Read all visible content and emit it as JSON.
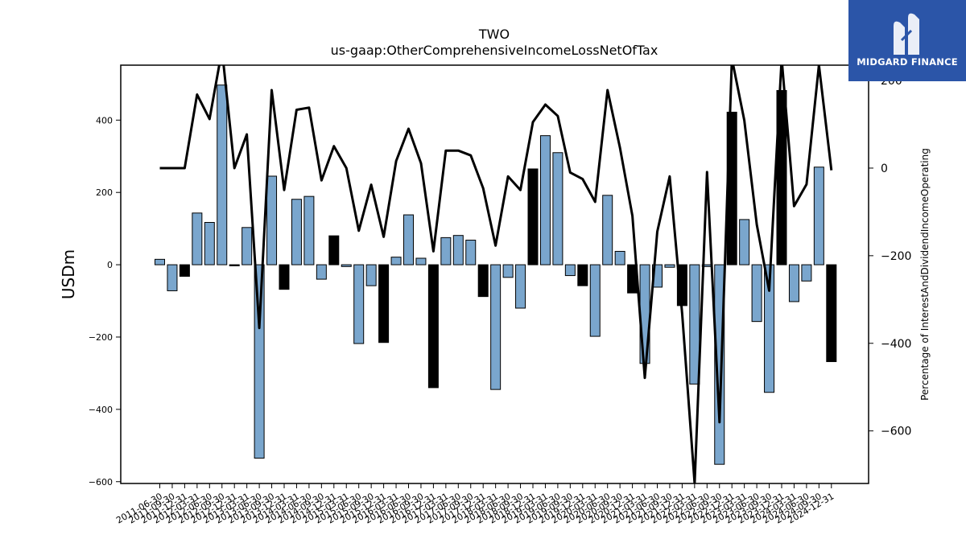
{
  "logo": {
    "text": "MIDGARD FINANCE"
  },
  "chart_data": {
    "type": "bar",
    "title": "TWO",
    "subtitle": "us-gaap:OtherComprehensiveIncomeLossNetOfTax",
    "ylabel": "USDm",
    "y2label": "Percentage of InterestAndDividendIncomeOperating",
    "ylim": [
      -605,
      552
    ],
    "y2lim": [
      -720,
      235
    ],
    "yticks": [
      -600,
      -400,
      -200,
      0,
      200,
      400
    ],
    "y2ticks": [
      -600,
      -400,
      -200,
      0,
      200
    ],
    "x_tick_labels": [
      "2011-06-30",
      "2011-09-30",
      "2011-12-31",
      "2012-03-31",
      "2012-06-30",
      "2012-09-30",
      "2012-12-31",
      "2013-03-31",
      "2013-06-30",
      "2013-09-30",
      "2013-12-31",
      "2014-03-31",
      "2014-06-30",
      "2014-09-30",
      "2014-12-31",
      "2015-03-31",
      "2015-06-30",
      "2015-09-30",
      "2015-12-31",
      "2016-03-31",
      "2016-06-30",
      "2016-09-30",
      "2016-12-31",
      "2017-03-31",
      "2017-06-30",
      "2017-09-30",
      "2017-12-31",
      "2018-03-31",
      "2018-06-30",
      "2018-09-30",
      "2018-12-31",
      "2019-03-31",
      "2019-06-30",
      "2019-09-30",
      "2019-12-31",
      "2020-03-31",
      "2020-06-30",
      "2020-09-30",
      "2020-12-31",
      "2021-03-31",
      "2021-06-30",
      "2021-09-30",
      "2021-12-31",
      "2022-03-31",
      "2022-06-30",
      "2022-09-30",
      "2022-12-31",
      "2023-03-31",
      "2023-06-30",
      "2023-09-30",
      "2023-12-31",
      "2024-03-31",
      "2024-06-30",
      "2024-09-30",
      "2024-12-31"
    ],
    "series": [
      {
        "kind": "bar",
        "values": [
          15,
          -72,
          -32,
          143,
          117,
          497,
          -3,
          103,
          -535,
          245,
          -68,
          181,
          189,
          -40,
          80,
          -5,
          -218,
          -58,
          -215,
          21,
          138,
          18,
          -340,
          75,
          81,
          68,
          -88,
          -345,
          -35,
          -120,
          265,
          357,
          310,
          -30,
          -58,
          -198,
          192,
          37,
          -78,
          -273,
          -62,
          -7,
          -113,
          -330,
          -5,
          -552,
          422,
          125,
          -157,
          -353,
          482,
          -102,
          -45,
          270,
          -268
        ],
        "colors": [
          "#7aa6cd",
          "#7aa6cd",
          "#000000",
          "#7aa6cd",
          "#7aa6cd",
          "#7aa6cd",
          "#000000",
          "#7aa6cd",
          "#7aa6cd",
          "#7aa6cd",
          "#000000",
          "#7aa6cd",
          "#7aa6cd",
          "#7aa6cd",
          "#000000",
          "#7aa6cd",
          "#7aa6cd",
          "#7aa6cd",
          "#000000",
          "#7aa6cd",
          "#7aa6cd",
          "#7aa6cd",
          "#000000",
          "#7aa6cd",
          "#7aa6cd",
          "#7aa6cd",
          "#000000",
          "#7aa6cd",
          "#7aa6cd",
          "#7aa6cd",
          "#000000",
          "#7aa6cd",
          "#7aa6cd",
          "#7aa6cd",
          "#000000",
          "#7aa6cd",
          "#7aa6cd",
          "#7aa6cd",
          "#000000",
          "#7aa6cd",
          "#7aa6cd",
          "#7aa6cd",
          "#000000",
          "#7aa6cd",
          "#7aa6cd",
          "#7aa6cd",
          "#000000",
          "#7aa6cd",
          "#7aa6cd",
          "#7aa6cd",
          "#000000",
          "#7aa6cd",
          "#7aa6cd",
          "#7aa6cd",
          "#000000"
        ]
      },
      {
        "kind": "line",
        "axis": "right",
        "color": "#000000",
        "values": [
          0,
          0,
          0,
          168,
          112,
          270,
          0,
          77,
          -365,
          178,
          -50,
          133,
          138,
          -28,
          50,
          0,
          -143,
          -38,
          -157,
          16,
          90,
          11,
          -190,
          40,
          40,
          29,
          -46,
          -177,
          -19,
          -50,
          105,
          145,
          119,
          -10,
          -25,
          -77,
          178,
          47,
          -109,
          -479,
          -145,
          -19,
          -332,
          -720,
          -9,
          -580,
          250,
          109,
          -129,
          -280,
          250,
          -87,
          -37,
          235,
          -5
        ]
      }
    ],
    "grid": false
  }
}
